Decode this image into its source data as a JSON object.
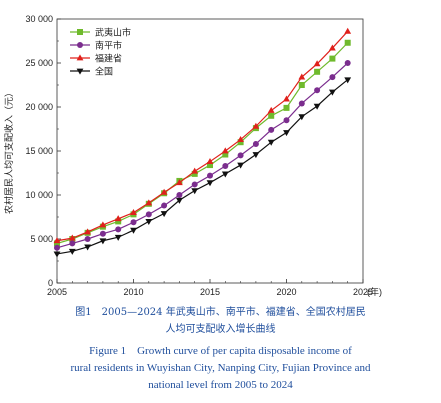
{
  "chart_data": {
    "type": "line",
    "ylabel": "农村居民人均可支配收入（元）",
    "xlabel_unit": "(年)",
    "xlim": [
      2005,
      2025
    ],
    "ylim": [
      0,
      30000
    ],
    "xticks": [
      "2005",
      "2010",
      "2015",
      "2020",
      "2025"
    ],
    "yticks": [
      "0",
      "5 000",
      "10 000",
      "15 000",
      "20 000",
      "25 000",
      "30 000"
    ],
    "legend_position": "top-left",
    "x": [
      2005,
      2006,
      2007,
      2008,
      2009,
      2010,
      2011,
      2012,
      2013,
      2014,
      2015,
      2016,
      2017,
      2018,
      2019,
      2020,
      2021,
      2022,
      2023,
      2024
    ],
    "series": [
      {
        "name": "武夷山市",
        "color": "#6fba2c",
        "marker": "square",
        "values": [
          4500,
          5000,
          5700,
          6400,
          7000,
          7800,
          9000,
          10200,
          11600,
          12400,
          13400,
          14600,
          16000,
          17600,
          19000,
          19900,
          22500,
          24000,
          25500,
          27300
        ]
      },
      {
        "name": "南平市",
        "color": "#7b2d8e",
        "marker": "circle",
        "values": [
          4000,
          4500,
          5000,
          5600,
          6100,
          6900,
          7800,
          8800,
          10000,
          11200,
          12200,
          13300,
          14500,
          15800,
          17400,
          18500,
          20400,
          21900,
          23400,
          25000
        ]
      },
      {
        "name": "福建省",
        "color": "#e0201b",
        "marker": "triangle-up",
        "values": [
          4800,
          5100,
          5800,
          6600,
          7300,
          8000,
          9100,
          10300,
          11400,
          12700,
          13800,
          15000,
          16300,
          17800,
          19600,
          20900,
          23400,
          24900,
          26700,
          28600
        ]
      },
      {
        "name": "全国",
        "color": "#111111",
        "marker": "triangle-down",
        "values": [
          3300,
          3600,
          4100,
          4800,
          5200,
          6000,
          7000,
          7900,
          9400,
          10500,
          11400,
          12400,
          13400,
          14600,
          16000,
          17100,
          18900,
          20100,
          21700,
          23100
        ]
      }
    ]
  },
  "caption": {
    "cn_line1": "图1　2005—2024 年武夷山市、南平市、福建省、全国农村居民",
    "cn_line2": "人均可支配收入增长曲线",
    "en_line1": "Figure 1　Growth curve of per capita disposable income of",
    "en_line2": "rural residents in Wuyishan City, Nanping City, Fujian Province and",
    "en_line3": "national level from 2005 to 2024"
  }
}
